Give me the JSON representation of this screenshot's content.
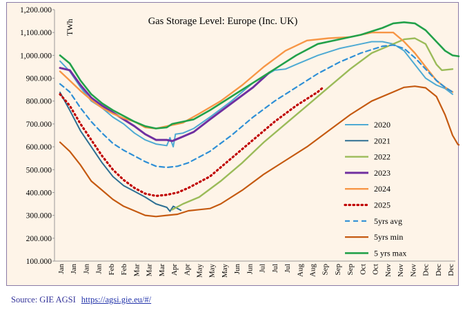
{
  "source": {
    "label": "Source: GIE AGSI",
    "link_text": "https://agsi.gie.eu/#/"
  },
  "chart_data": {
    "type": "line",
    "title": "Gas Storage Level: Europe (Inc. UK)",
    "ylabel": "TWh",
    "xlabel": "",
    "ylim": [
      100,
      1200
    ],
    "yticks": [
      "100.000",
      "200.000",
      "300.000",
      "400.000",
      "500.000",
      "600.000",
      "700.000",
      "800.000",
      "900.000",
      "1,000.000",
      "1,100.000",
      "1,200.000"
    ],
    "grid": false,
    "legend_position": "right",
    "x_tick_labels": [
      "Jan",
      "Jan",
      "Jan",
      "Jan",
      "Feb",
      "Feb",
      "Mar",
      "Mar",
      "Mar",
      "Apr",
      "Apr",
      "May",
      "May",
      "May",
      "Jun",
      "Jun",
      "Jul",
      "Jul",
      "Jul",
      "Aug",
      "Aug",
      "Sep",
      "Sep",
      "Sep",
      "Oct",
      "Oct",
      "Nov",
      "Nov",
      "Nov",
      "Dec",
      "Dec",
      "Dec"
    ],
    "x_range_days": [
      1,
      365
    ],
    "series": [
      {
        "name": "2020",
        "color": "#4eaad3",
        "width": 2.0,
        "dash": "",
        "points": [
          [
            1,
            975
          ],
          [
            10,
            930
          ],
          [
            20,
            860
          ],
          [
            30,
            800
          ],
          [
            40,
            770
          ],
          [
            50,
            730
          ],
          [
            60,
            700
          ],
          [
            70,
            660
          ],
          [
            80,
            630
          ],
          [
            90,
            612
          ],
          [
            100,
            605
          ],
          [
            103,
            640
          ],
          [
            106,
            600
          ],
          [
            108,
            655
          ],
          [
            115,
            660
          ],
          [
            125,
            680
          ],
          [
            140,
            730
          ],
          [
            160,
            800
          ],
          [
            180,
            880
          ],
          [
            200,
            935
          ],
          [
            210,
            940
          ],
          [
            220,
            960
          ],
          [
            240,
            1000
          ],
          [
            260,
            1030
          ],
          [
            280,
            1050
          ],
          [
            290,
            1060
          ],
          [
            300,
            1060
          ],
          [
            310,
            1050
          ],
          [
            320,
            1020
          ],
          [
            330,
            960
          ],
          [
            340,
            900
          ],
          [
            350,
            870
          ],
          [
            358,
            855
          ],
          [
            365,
            830
          ]
        ]
      },
      {
        "name": "2021",
        "color": "#2d6f93",
        "width": 2.0,
        "dash": "",
        "points": [
          [
            1,
            838
          ],
          [
            10,
            760
          ],
          [
            20,
            670
          ],
          [
            30,
            600
          ],
          [
            40,
            530
          ],
          [
            50,
            470
          ],
          [
            60,
            430
          ],
          [
            70,
            405
          ],
          [
            80,
            380
          ],
          [
            90,
            350
          ],
          [
            100,
            335
          ],
          [
            103,
            318
          ],
          [
            106,
            340
          ],
          [
            110,
            330
          ],
          [
            113,
            322
          ]
        ]
      },
      {
        "name": "2022",
        "color": "#9bbb59",
        "width": 2.4,
        "dash": "",
        "points": [
          [
            105,
            325
          ],
          [
            115,
            350
          ],
          [
            130,
            380
          ],
          [
            150,
            450
          ],
          [
            170,
            530
          ],
          [
            190,
            620
          ],
          [
            210,
            700
          ],
          [
            230,
            780
          ],
          [
            250,
            860
          ],
          [
            270,
            940
          ],
          [
            290,
            1010
          ],
          [
            310,
            1050
          ],
          [
            320,
            1070
          ],
          [
            330,
            1075
          ],
          [
            340,
            1050
          ],
          [
            350,
            960
          ],
          [
            355,
            935
          ],
          [
            365,
            940
          ]
        ]
      },
      {
        "name": "2023",
        "color": "#7030a0",
        "width": 3.0,
        "dash": "",
        "points": [
          [
            1,
            945
          ],
          [
            10,
            935
          ],
          [
            20,
            870
          ],
          [
            30,
            815
          ],
          [
            40,
            780
          ],
          [
            50,
            750
          ],
          [
            60,
            720
          ],
          [
            70,
            690
          ],
          [
            80,
            655
          ],
          [
            90,
            630
          ],
          [
            100,
            630
          ],
          [
            105,
            625
          ],
          [
            115,
            645
          ],
          [
            125,
            665
          ],
          [
            140,
            720
          ],
          [
            160,
            790
          ],
          [
            180,
            860
          ],
          [
            195,
            925
          ]
        ]
      },
      {
        "name": "2024",
        "color": "#f79646",
        "width": 2.4,
        "dash": "",
        "points": [
          [
            1,
            930
          ],
          [
            10,
            890
          ],
          [
            20,
            845
          ],
          [
            30,
            805
          ],
          [
            40,
            770
          ],
          [
            50,
            745
          ],
          [
            60,
            725
          ],
          [
            70,
            710
          ],
          [
            80,
            685
          ],
          [
            90,
            680
          ],
          [
            100,
            690
          ],
          [
            115,
            705
          ],
          [
            130,
            745
          ],
          [
            150,
            800
          ],
          [
            170,
            870
          ],
          [
            190,
            950
          ],
          [
            210,
            1020
          ],
          [
            230,
            1065
          ],
          [
            250,
            1075
          ],
          [
            270,
            1080
          ],
          [
            290,
            1100
          ],
          [
            310,
            1100
          ],
          [
            320,
            1060
          ],
          [
            330,
            1010
          ],
          [
            340,
            950
          ],
          [
            350,
            890
          ],
          [
            358,
            860
          ],
          [
            365,
            840
          ]
        ]
      },
      {
        "name": "2025",
        "color": "#c00000",
        "width": 3.2,
        "dash": "1.5 4.5",
        "cap": "round",
        "points": [
          [
            1,
            830
          ],
          [
            10,
            780
          ],
          [
            20,
            700
          ],
          [
            30,
            630
          ],
          [
            40,
            560
          ],
          [
            50,
            500
          ],
          [
            60,
            455
          ],
          [
            70,
            420
          ],
          [
            80,
            395
          ],
          [
            90,
            385
          ],
          [
            100,
            390
          ],
          [
            110,
            400
          ],
          [
            120,
            420
          ],
          [
            140,
            470
          ],
          [
            160,
            550
          ],
          [
            180,
            630
          ],
          [
            200,
            710
          ],
          [
            220,
            780
          ],
          [
            240,
            840
          ],
          [
            245,
            860
          ]
        ]
      },
      {
        "name": "5yrs avg",
        "color": "#2e8fd6",
        "width": 2.2,
        "dash": "7 5",
        "points": [
          [
            1,
            875
          ],
          [
            10,
            840
          ],
          [
            20,
            770
          ],
          [
            30,
            710
          ],
          [
            40,
            660
          ],
          [
            50,
            615
          ],
          [
            60,
            585
          ],
          [
            70,
            560
          ],
          [
            80,
            535
          ],
          [
            90,
            515
          ],
          [
            100,
            510
          ],
          [
            110,
            515
          ],
          [
            120,
            530
          ],
          [
            140,
            580
          ],
          [
            160,
            650
          ],
          [
            180,
            730
          ],
          [
            200,
            800
          ],
          [
            220,
            860
          ],
          [
            240,
            920
          ],
          [
            260,
            970
          ],
          [
            280,
            1010
          ],
          [
            300,
            1040
          ],
          [
            310,
            1045
          ],
          [
            320,
            1030
          ],
          [
            330,
            990
          ],
          [
            340,
            940
          ],
          [
            350,
            890
          ],
          [
            358,
            860
          ],
          [
            365,
            840
          ]
        ]
      },
      {
        "name": "5yrs min",
        "color": "#c55a11",
        "width": 2.2,
        "dash": "",
        "points": [
          [
            1,
            620
          ],
          [
            10,
            580
          ],
          [
            20,
            520
          ],
          [
            30,
            450
          ],
          [
            40,
            410
          ],
          [
            50,
            370
          ],
          [
            60,
            340
          ],
          [
            70,
            320
          ],
          [
            80,
            300
          ],
          [
            90,
            295
          ],
          [
            100,
            300
          ],
          [
            110,
            305
          ],
          [
            120,
            320
          ],
          [
            130,
            325
          ],
          [
            140,
            330
          ],
          [
            150,
            350
          ],
          [
            170,
            410
          ],
          [
            190,
            480
          ],
          [
            210,
            540
          ],
          [
            230,
            600
          ],
          [
            250,
            670
          ],
          [
            270,
            740
          ],
          [
            290,
            800
          ],
          [
            310,
            840
          ],
          [
            320,
            860
          ],
          [
            330,
            865
          ],
          [
            340,
            858
          ],
          [
            350,
            820
          ],
          [
            358,
            740
          ],
          [
            365,
            650
          ],
          [
            370,
            610
          ],
          [
            378,
            600
          ]
        ]
      },
      {
        "name": "5 yrs max",
        "color": "#22a14a",
        "width": 2.6,
        "dash": "",
        "points": [
          [
            1,
            1000
          ],
          [
            10,
            965
          ],
          [
            20,
            890
          ],
          [
            30,
            830
          ],
          [
            40,
            790
          ],
          [
            50,
            760
          ],
          [
            60,
            735
          ],
          [
            70,
            710
          ],
          [
            80,
            690
          ],
          [
            90,
            680
          ],
          [
            100,
            685
          ],
          [
            105,
            700
          ],
          [
            115,
            710
          ],
          [
            125,
            720
          ],
          [
            140,
            760
          ],
          [
            160,
            820
          ],
          [
            180,
            880
          ],
          [
            200,
            940
          ],
          [
            220,
            1000
          ],
          [
            240,
            1050
          ],
          [
            260,
            1070
          ],
          [
            280,
            1090
          ],
          [
            300,
            1120
          ],
          [
            310,
            1140
          ],
          [
            320,
            1145
          ],
          [
            330,
            1140
          ],
          [
            340,
            1110
          ],
          [
            350,
            1060
          ],
          [
            358,
            1020
          ],
          [
            365,
            1000
          ],
          [
            372,
            995
          ]
        ]
      }
    ]
  }
}
